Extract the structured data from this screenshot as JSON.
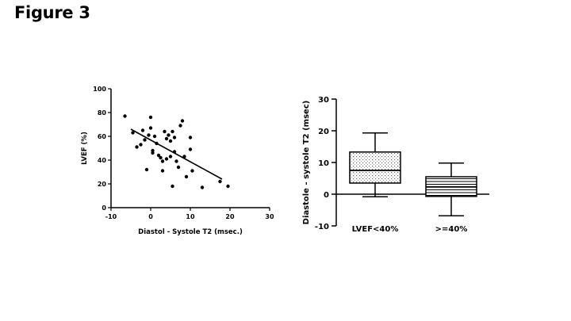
{
  "figure_title": "Figure 3",
  "chart_data": [
    {
      "type": "scatter",
      "title": "",
      "xlabel": "Diastol - Systole T2 (msec.)",
      "ylabel": "LVEF (%)",
      "xlim": [
        -10,
        30
      ],
      "ylim": [
        0,
        100
      ],
      "xticks": [
        -10,
        0,
        10,
        20,
        30
      ],
      "yticks": [
        0,
        20,
        40,
        60,
        80,
        100
      ],
      "points": [
        {
          "x": -6.5,
          "y": 77
        },
        {
          "x": -4.5,
          "y": 63
        },
        {
          "x": -3.5,
          "y": 51
        },
        {
          "x": -2.5,
          "y": 53
        },
        {
          "x": -2,
          "y": 65
        },
        {
          "x": -1.5,
          "y": 57
        },
        {
          "x": -1,
          "y": 32
        },
        {
          "x": -0.5,
          "y": 61
        },
        {
          "x": 0,
          "y": 76
        },
        {
          "x": 0,
          "y": 67
        },
        {
          "x": 0.5,
          "y": 48
        },
        {
          "x": 0.5,
          "y": 46
        },
        {
          "x": 1,
          "y": 60
        },
        {
          "x": 1.5,
          "y": 54
        },
        {
          "x": 2,
          "y": 44
        },
        {
          "x": 2.5,
          "y": 42
        },
        {
          "x": 3,
          "y": 31
        },
        {
          "x": 3,
          "y": 39
        },
        {
          "x": 3.5,
          "y": 64
        },
        {
          "x": 4,
          "y": 58
        },
        {
          "x": 4,
          "y": 41
        },
        {
          "x": 4.5,
          "y": 61
        },
        {
          "x": 5,
          "y": 56
        },
        {
          "x": 5,
          "y": 43
        },
        {
          "x": 5.5,
          "y": 64
        },
        {
          "x": 5.5,
          "y": 18
        },
        {
          "x": 6,
          "y": 59
        },
        {
          "x": 6,
          "y": 47
        },
        {
          "x": 6.5,
          "y": 39
        },
        {
          "x": 7,
          "y": 34
        },
        {
          "x": 7.5,
          "y": 69
        },
        {
          "x": 8,
          "y": 73
        },
        {
          "x": 8.5,
          "y": 43
        },
        {
          "x": 9,
          "y": 26
        },
        {
          "x": 10,
          "y": 59
        },
        {
          "x": 10,
          "y": 49
        },
        {
          "x": 10.5,
          "y": 31
        },
        {
          "x": 13,
          "y": 17
        },
        {
          "x": 17.5,
          "y": 22
        },
        {
          "x": 19.5,
          "y": 18
        }
      ],
      "fit_line": {
        "x": [
          -5,
          18
        ],
        "y": [
          66,
          24
        ]
      }
    },
    {
      "type": "box",
      "title": "",
      "xlabel": "",
      "ylabel": "Diastole - systole T2 (msec)",
      "ylim": [
        -10,
        30
      ],
      "yticks": [
        -10,
        0,
        10,
        20,
        30
      ],
      "categories": [
        "LVEF<40%",
        ">=40%"
      ],
      "boxes": [
        {
          "name": "LVEF<40%",
          "min": -0.8,
          "q1": 3.5,
          "median": 7.5,
          "q3": 13.3,
          "max": 19.3,
          "fill": "dotted"
        },
        {
          "name": ">=40%",
          "min": -6.8,
          "q1": -0.7,
          "median": 2.3,
          "q3": 5.5,
          "max": 9.8,
          "fill": "horizontal-lines"
        }
      ]
    }
  ]
}
